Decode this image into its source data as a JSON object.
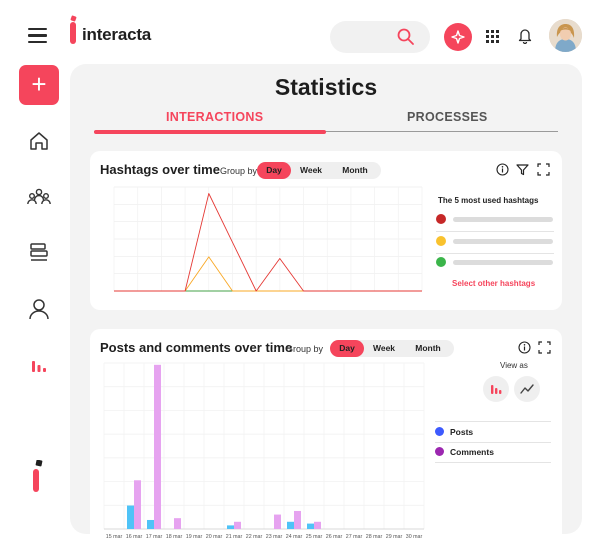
{
  "header": {
    "logo_text": "interacta",
    "icons": [
      "hamburger-icon",
      "search-icon",
      "ai-sparkle-icon",
      "apps-grid-icon",
      "bell-icon",
      "avatar"
    ]
  },
  "sidebar": {
    "add_label": "+",
    "items": [
      "home-icon",
      "community-icon",
      "board-icon",
      "user-icon",
      "stats-icon"
    ]
  },
  "main": {
    "title": "Statistics",
    "tabs": [
      {
        "label": "INTERACTIONS",
        "active": true
      },
      {
        "label": "PROCESSES",
        "active": false
      }
    ]
  },
  "hashtags_card": {
    "title": "Hashtags over time",
    "group_by_label": "Group by",
    "group_options": [
      "Day",
      "Week",
      "Month"
    ],
    "selected": "Day",
    "top5_title": "The 5 most used hashtags",
    "select_other": "Select other hashtags",
    "legend_colors": [
      "#c62828",
      "#f9c22e",
      "#3bb54a"
    ]
  },
  "posts_card": {
    "title": "Posts and comments over time",
    "group_by_label": "Group by",
    "group_options": [
      "Day",
      "Week",
      "Month"
    ],
    "selected": "Day",
    "view_as_label": "View as",
    "legend": [
      {
        "label": "Posts",
        "color": "#3d5afe"
      },
      {
        "label": "Comments",
        "color": "#9c27b0"
      }
    ]
  },
  "chart_data": [
    {
      "type": "line",
      "x_count": 14,
      "series": [
        {
          "color": "#e53935",
          "values": [
            0,
            0,
            0,
            0,
            6,
            3,
            0,
            2,
            0,
            0,
            0,
            0,
            0,
            0
          ]
        },
        {
          "color": "#f9a825",
          "values": [
            0,
            0,
            0,
            0,
            2.1,
            0,
            0,
            0,
            0,
            0,
            0,
            0,
            0,
            0
          ]
        },
        {
          "color": "#43a047",
          "values": [
            0,
            0,
            0,
            0,
            0,
            0,
            0,
            0,
            0,
            0,
            0,
            0,
            0,
            0
          ]
        }
      ],
      "ylim": [
        0,
        6.4
      ],
      "grid": true
    },
    {
      "type": "bar",
      "categories": [
        "15 mar",
        "16 mar",
        "17 mar",
        "18 mar",
        "19 mar",
        "20 mar",
        "21 mar",
        "22 mar",
        "23 mar",
        "24 mar",
        "25 mar",
        "26 mar",
        "27 mar",
        "28 mar",
        "29 mar",
        "30 mar"
      ],
      "series": [
        {
          "color": "#4fc3f7",
          "values": [
            0,
            13,
            5,
            0,
            0,
            0,
            2,
            0,
            0,
            4,
            3,
            0,
            0,
            0,
            0,
            0
          ]
        },
        {
          "color": "#e6a3f0",
          "values": [
            0,
            27,
            91,
            6,
            0,
            0,
            4,
            0,
            8,
            10,
            4,
            0,
            0,
            0,
            0,
            0
          ]
        }
      ],
      "ylim": [
        0,
        92
      ],
      "grid": true
    }
  ]
}
